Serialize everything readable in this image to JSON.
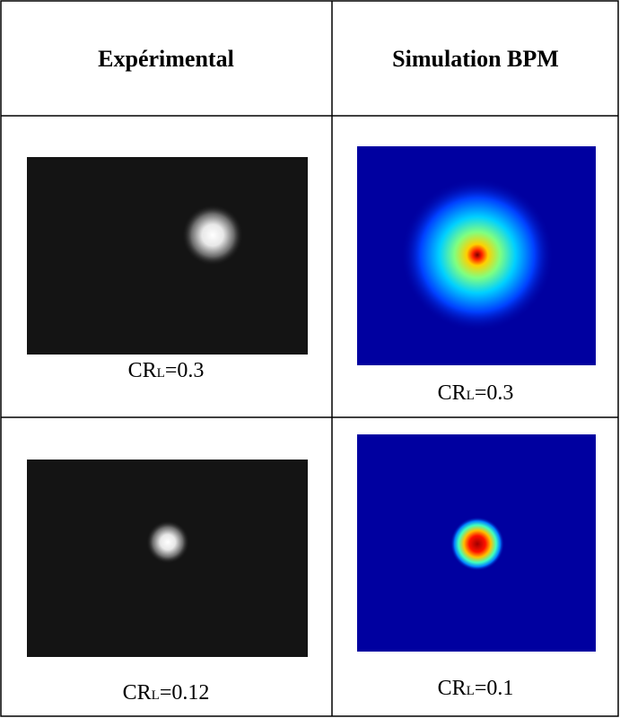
{
  "table": {
    "header": [
      "Expérimental",
      "Simulation BPM"
    ],
    "rows": [
      [
        {
          "main": "CR",
          "sub": "L",
          "rest": "=0.3"
        },
        {
          "main": "CR",
          "sub": "L",
          "rest": "=0.3"
        }
      ],
      [
        {
          "main": "CR",
          "sub": "L",
          "rest": "=0.12"
        },
        {
          "main": "CR",
          "sub": "L",
          "rest": "=0.1"
        }
      ]
    ]
  }
}
